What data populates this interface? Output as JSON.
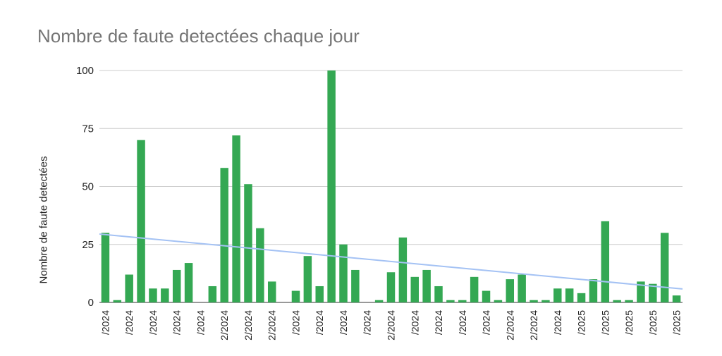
{
  "chart_data": {
    "type": "bar",
    "title": "Nombre de faute detectées chaque jour",
    "ylabel": "Nombre de faute detectées",
    "xlabel": "",
    "ylim": [
      0,
      100
    ],
    "yticks": [
      "0",
      "25",
      "50",
      "75",
      "100"
    ],
    "grid": true,
    "legend": "none",
    "colors": {
      "bar": "#34a853",
      "trend": "#a4c2f4",
      "grid": "#cccccc"
    },
    "x_tick_labels": [
      "/2024",
      "/2024",
      "/2024",
      "/2024",
      "/2024",
      "2/2024",
      "2/2024",
      "2/2024",
      "/2024",
      "/2024",
      "/2024",
      "/2024",
      "2/2024",
      "/2024",
      "/2024",
      "/2024",
      "/2024",
      "2/2024",
      "2/2024",
      "/2024",
      "/2025",
      "/2025",
      "/2025",
      "/2025",
      "/2025"
    ],
    "values": [
      30,
      1,
      12,
      70,
      6,
      6,
      14,
      17,
      0,
      7,
      58,
      72,
      51,
      32,
      9,
      0,
      5,
      20,
      7,
      100,
      25,
      14,
      0,
      1,
      13,
      28,
      11,
      14,
      7,
      1,
      1,
      11,
      5,
      1,
      10,
      12,
      1,
      1,
      6,
      6,
      4,
      10,
      35,
      1,
      1,
      9,
      8,
      30,
      3
    ],
    "trendline": {
      "start": 29.5,
      "end": 5.8
    }
  }
}
